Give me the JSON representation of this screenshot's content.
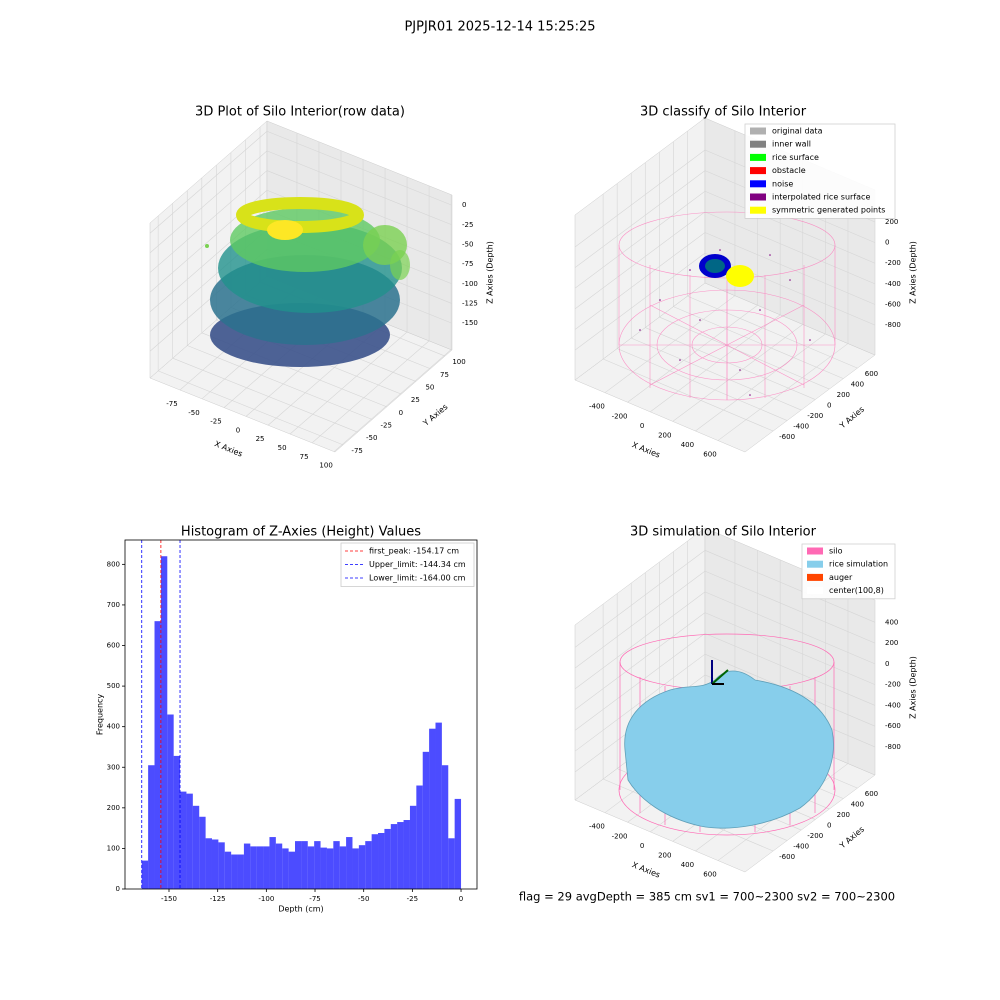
{
  "title": "PJPJR01 2025-12-14 15:25:25",
  "footer": "flag = 29  avgDepth = 385 cm  sv1 = 700~2300  sv2 = 700~2300",
  "chart_data": [
    {
      "type": "scatter3d",
      "title": "3D Plot of Silo Interior(row data)",
      "xlabel": "X Axies",
      "ylabel": "Y Axies",
      "zlabel": "Z Axies (Depth)",
      "xlim": [
        -109,
        101
      ],
      "ylim": [
        -89,
        112
      ],
      "zlim": [
        -184,
        13
      ],
      "xticks": [
        -75,
        -50,
        -25,
        0,
        25,
        50,
        75,
        100
      ],
      "yticks": [
        -75,
        -50,
        -25,
        0,
        25,
        50,
        75,
        100
      ],
      "zticks": [
        0,
        -25,
        -50,
        -75,
        -100,
        -125,
        -150
      ]
    },
    {
      "type": "scatter3d",
      "title": "3D classify of Silo Interior",
      "xlabel": "X Axies",
      "ylabel": "Y Axies",
      "zlabel": "Z Axies (Depth)",
      "xlim": [
        -665,
        839
      ],
      "ylim": [
        -1000,
        850
      ],
      "zlim": [
        -1090,
        510
      ],
      "xticks": [
        -400,
        -200,
        0,
        200,
        400,
        600
      ],
      "yticks": [
        -600,
        -400,
        -200,
        0,
        200,
        400,
        600
      ],
      "zticks": [
        200,
        0,
        -200,
        -400,
        -600,
        -800
      ],
      "series": [
        {
          "name": "original data",
          "color": "#b0b0b0"
        },
        {
          "name": "inner wall",
          "color": "#808080"
        },
        {
          "name": "rice surface",
          "color": "#00ff00"
        },
        {
          "name": "obstacle",
          "color": "#ff0000"
        },
        {
          "name": "noise",
          "color": "#0000ff"
        },
        {
          "name": "interpolated rice surface",
          "color": "#800080"
        },
        {
          "name": "symmetric generated points",
          "color": "#ffff00"
        }
      ]
    },
    {
      "type": "histogram",
      "title": "Histogram of Z-Axies (Height) Values",
      "xlabel": "Depth (cm)",
      "ylabel": "Frequency",
      "color": "#0000ff",
      "xlim": [
        -172.6,
        8.2
      ],
      "ylim": [
        0,
        860
      ],
      "xticks": [
        -150,
        -125,
        -100,
        -75,
        -50,
        -25,
        0
      ],
      "yticks": [
        0,
        100,
        200,
        300,
        400,
        500,
        600,
        700,
        800
      ],
      "bins": [
        -164,
        -160.72,
        -157.44,
        -154.16,
        -150.88,
        -147.6,
        -144.32,
        -141.04,
        -137.76,
        -134.48,
        -131.2,
        -127.92,
        -124.64,
        -121.36,
        -118.08,
        -114.8,
        -111.52,
        -108.24,
        -104.96,
        -101.68,
        -98.4,
        -95.12,
        -91.84,
        -88.56,
        -85.28,
        -82,
        -78.72,
        -75.44,
        -72.16,
        -68.88,
        -65.6,
        -62.32,
        -59.04,
        -55.76,
        -52.48,
        -49.2,
        -45.92,
        -42.64,
        -39.36,
        -36.08,
        -32.8,
        -29.52,
        -26.24,
        -22.96,
        -19.68,
        -16.4,
        -13.12,
        -9.84,
        -6.56,
        -3.28,
        0
      ],
      "counts": [
        70,
        305,
        660,
        820,
        430,
        328,
        240,
        235,
        205,
        178,
        125,
        122,
        115,
        92,
        85,
        85,
        112,
        105,
        105,
        105,
        128,
        112,
        100,
        92,
        118,
        118,
        105,
        118,
        102,
        100,
        118,
        105,
        128,
        100,
        108,
        118,
        135,
        138,
        148,
        160,
        165,
        170,
        205,
        255,
        338,
        395,
        410,
        305,
        125,
        222
      ],
      "lines": [
        {
          "name": "first_peak: -154.17 cm",
          "value": -154.17,
          "color": "#ff0000"
        },
        {
          "name": "Upper_limit: -144.34 cm",
          "value": -144.34,
          "color": "#0000ff"
        },
        {
          "name": "Lower_limit: -164.00 cm",
          "value": -164.0,
          "color": "#0000ff"
        }
      ]
    },
    {
      "type": "surface3d",
      "title": "3D simulation of Silo Interior",
      "xlabel": "X Axies",
      "ylabel": "Y Axies",
      "zlabel": "Z Axies (Depth)",
      "xlim": [
        -665,
        839
      ],
      "ylim": [
        -1000,
        850
      ],
      "zlim": [
        -1070,
        615
      ],
      "xticks": [
        -400,
        -200,
        0,
        200,
        400,
        600
      ],
      "yticks": [
        -600,
        -400,
        -200,
        0,
        200,
        400,
        600
      ],
      "zticks": [
        400,
        200,
        0,
        -200,
        -400,
        -600,
        -800
      ],
      "series": [
        {
          "name": "silo",
          "color": "#ff69b4"
        },
        {
          "name": "rice simulation",
          "color": "#87ceeb"
        },
        {
          "name": "auger",
          "color": "#ff4500"
        },
        {
          "name": "center(100,8)",
          "color": "#ffffff"
        }
      ]
    }
  ]
}
